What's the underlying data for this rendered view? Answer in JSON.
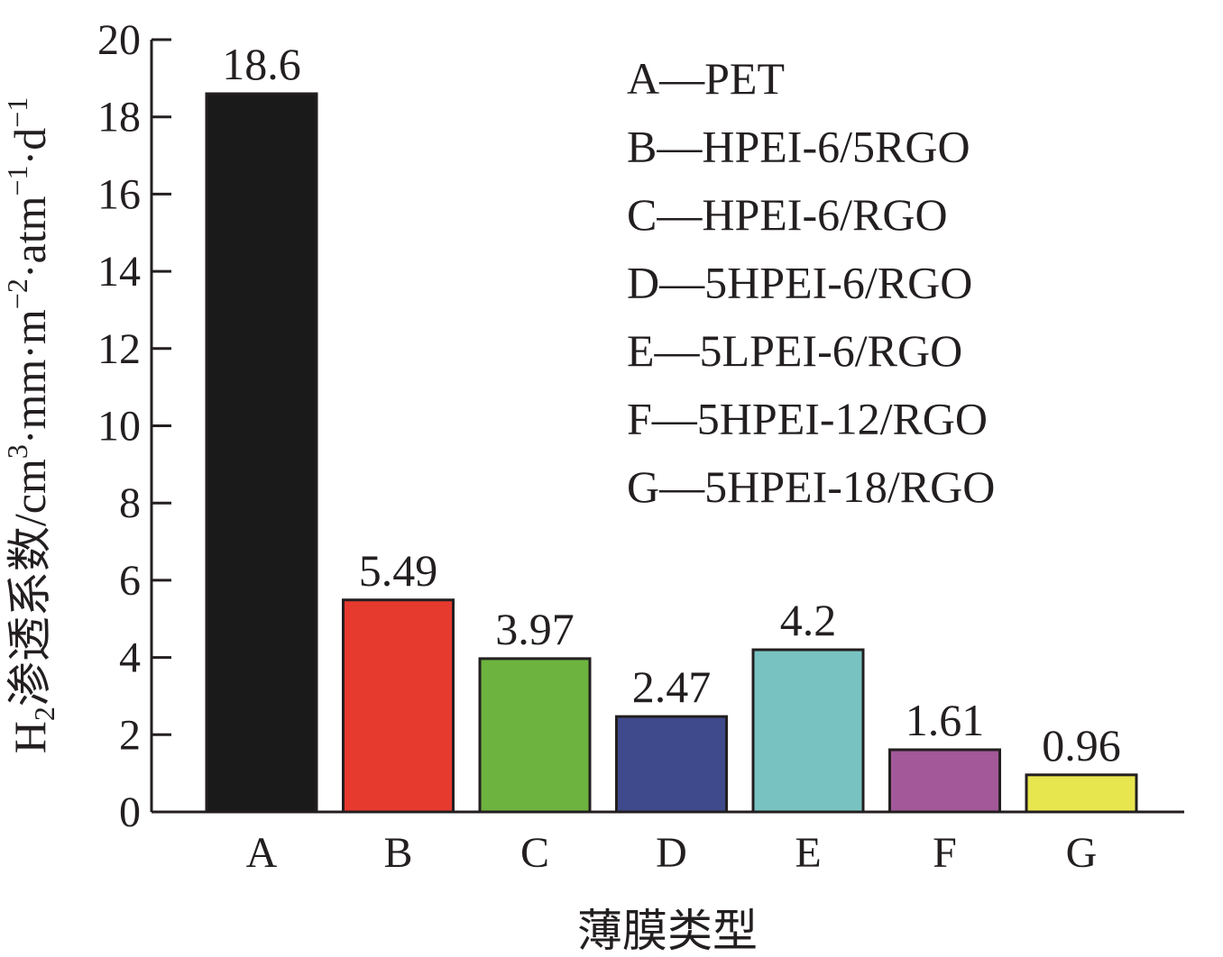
{
  "chart_data": {
    "type": "bar",
    "categories": [
      "A",
      "B",
      "C",
      "D",
      "E",
      "F",
      "G"
    ],
    "values": [
      18.6,
      5.49,
      3.97,
      2.47,
      4.2,
      1.61,
      0.96
    ],
    "value_labels": [
      "18.6",
      "5.49",
      "3.97",
      "2.47",
      "4.2",
      "1.61",
      "0.96"
    ],
    "colors": [
      "#1a1a1a",
      "#e63a2f",
      "#6db33f",
      "#3f4a8c",
      "#78c3c2",
      "#a35899",
      "#e8e64e"
    ],
    "ylim": [
      0,
      20
    ],
    "yticks": [
      0,
      2,
      4,
      6,
      8,
      10,
      12,
      14,
      16,
      18,
      20
    ],
    "xlabel": "薄膜类型",
    "ylabel": {
      "main": "H",
      "sub": "2",
      "rest": "渗透系数/cm",
      "sup1": "3",
      "mid1": "·mm·m",
      "sup2": "−2",
      "mid2": "·atm",
      "sup3": "−1",
      "mid3": "·d",
      "sup4": "−1"
    },
    "legend": [
      "A—PET",
      "B—HPEI-6/5RGO",
      "C—HPEI-6/RGO",
      "D—5HPEI-6/RGO",
      "E—5LPEI-6/RGO",
      "F—5HPEI-12/RGO",
      "G—5HPEI-18/RGO"
    ],
    "legend_position": "top-right",
    "grid": false
  }
}
